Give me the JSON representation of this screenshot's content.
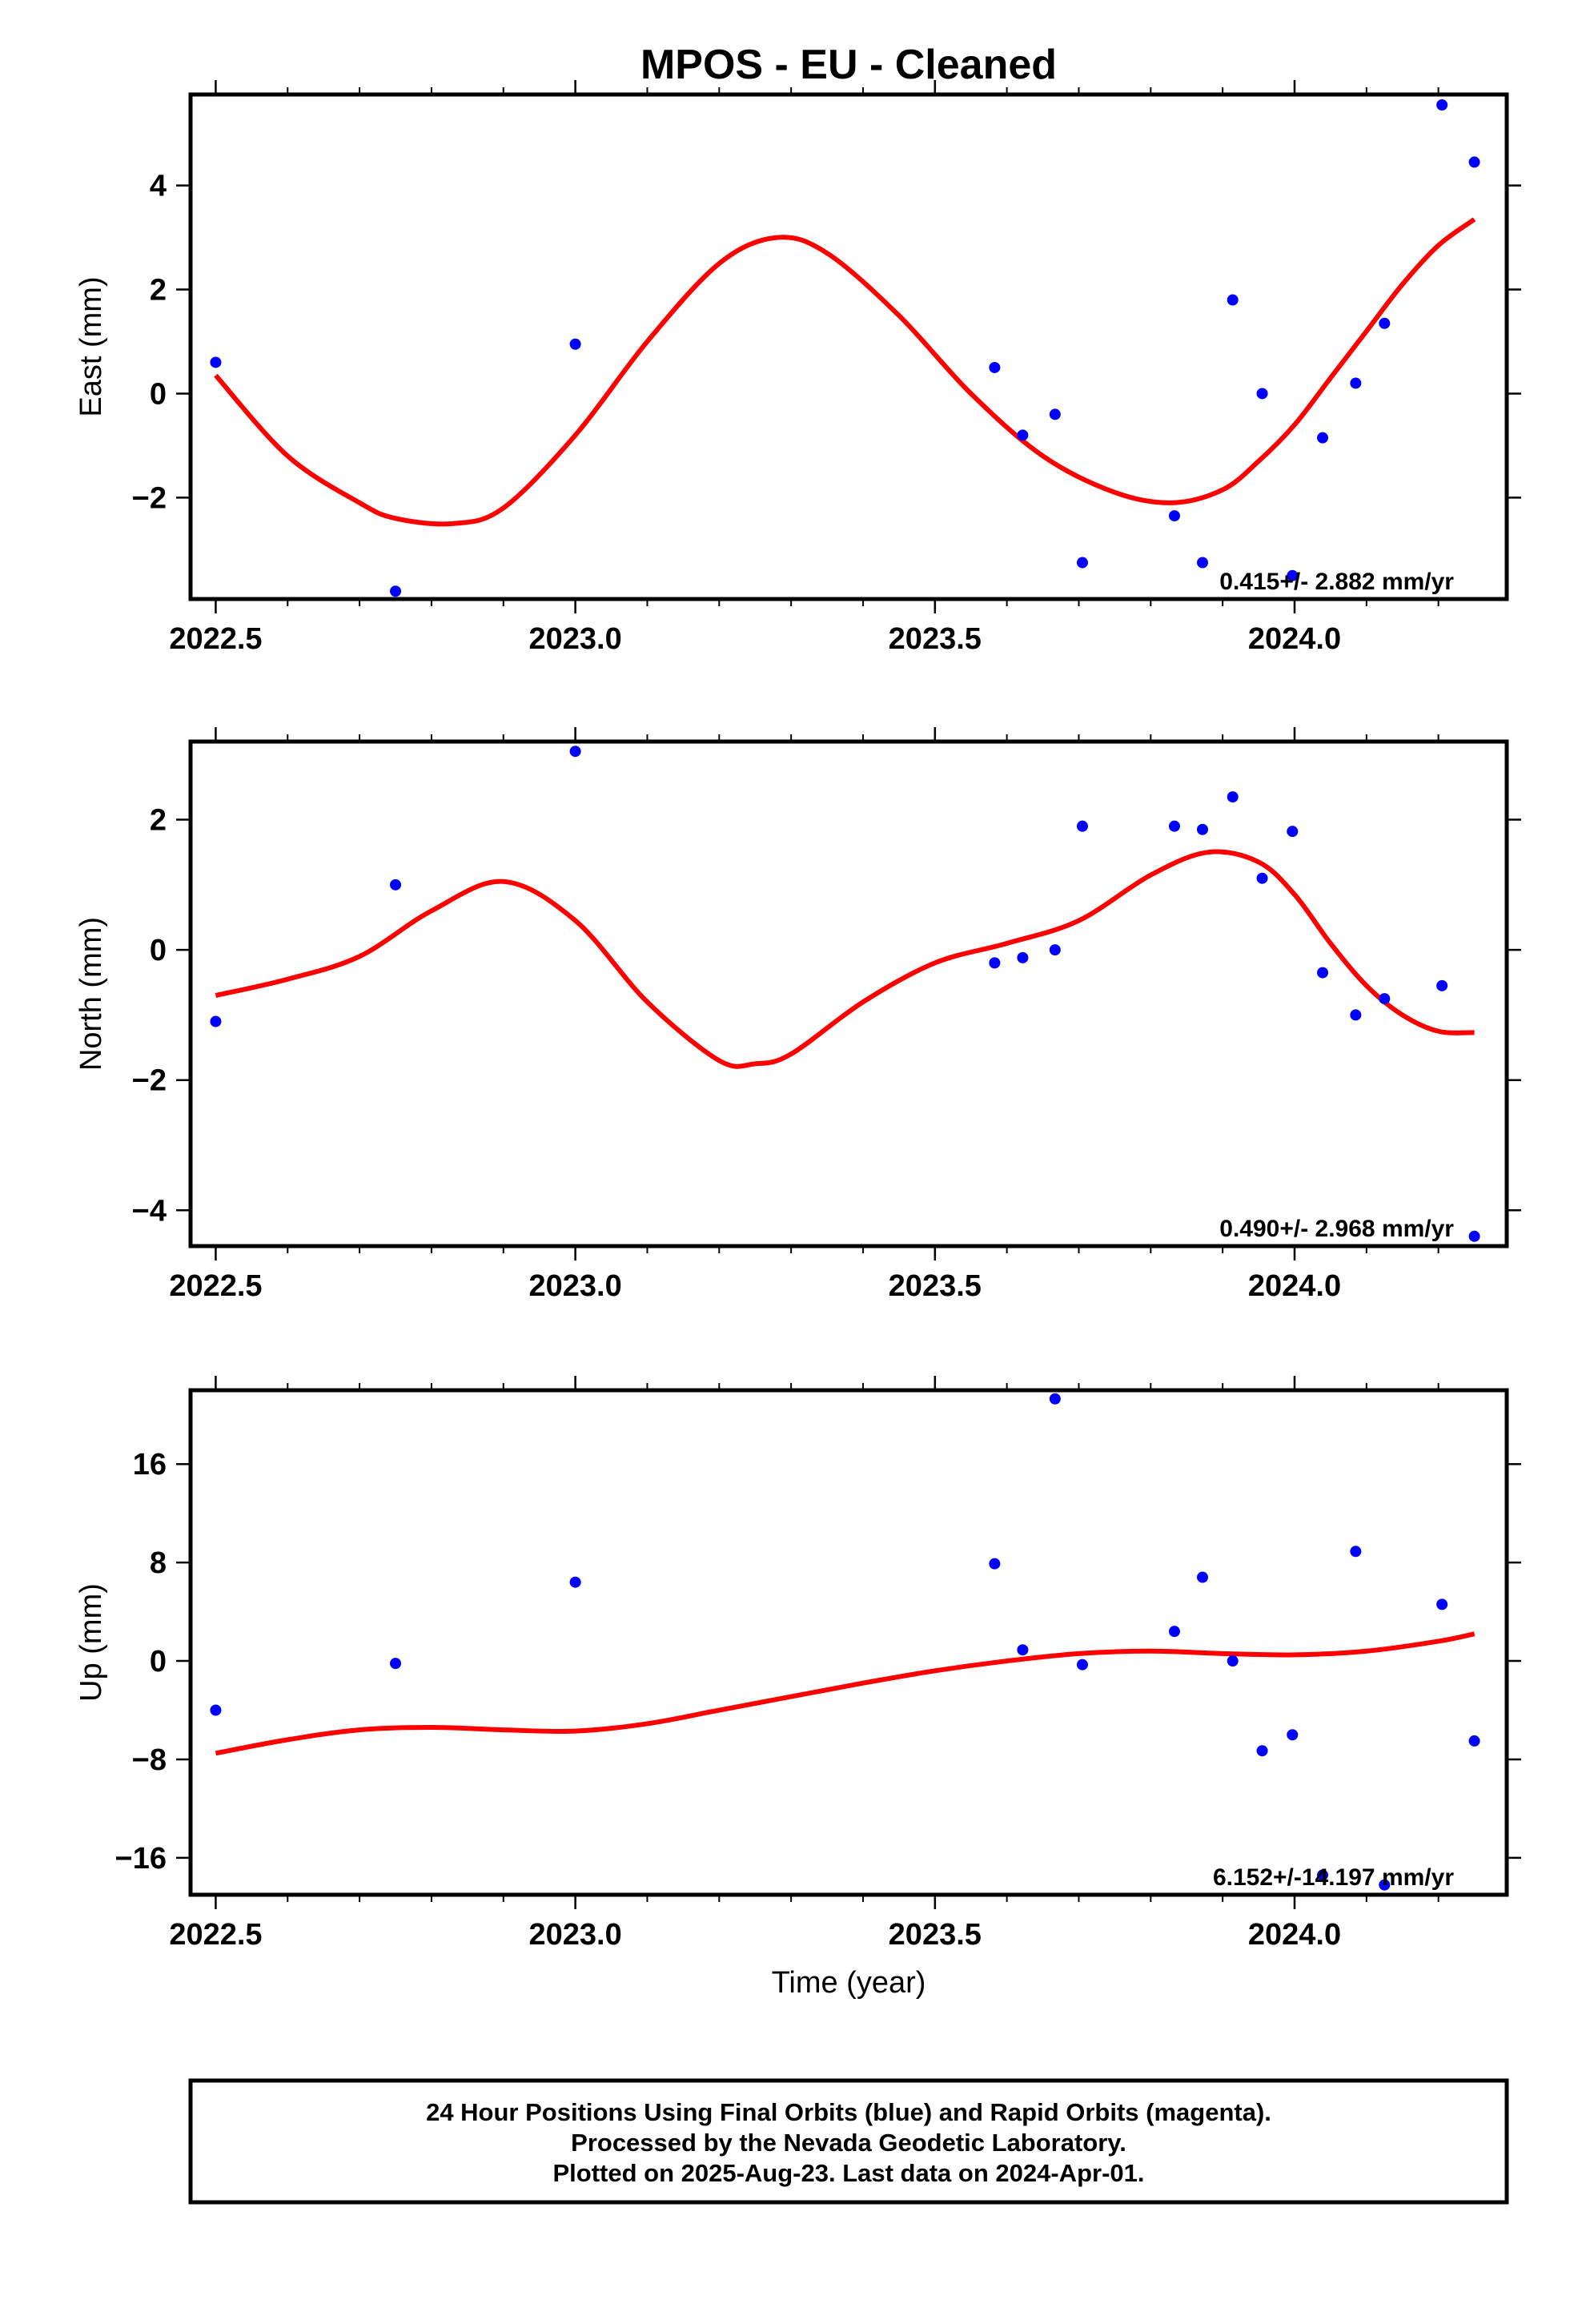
{
  "title": "MPOS  - EU - Cleaned",
  "colors": {
    "points": "#0000ff",
    "fit": "#ff0000",
    "frame": "#000000"
  },
  "footer": {
    "line1": "24 Hour Positions Using Final Orbits (blue) and Rapid Orbits (magenta).",
    "line2": "Processed by the Nevada Geodetic Laboratory.",
    "line3": "Plotted on 2025-Aug-23. Last data on 2024-Apr-01."
  },
  "chart_data": [
    {
      "type": "scatter",
      "ylabel": "East (mm)",
      "xlabel": "",
      "xlim": [
        2022.465,
        2024.295
      ],
      "ylim": [
        -3.95,
        5.75
      ],
      "xticks": [
        2022.5,
        2023.0,
        2023.5,
        2024.0
      ],
      "xtick_labels": [
        "2022.5",
        "2023.0",
        "2023.5",
        "2024.0"
      ],
      "yticks": [
        -2,
        0,
        2,
        4
      ],
      "ytick_labels": [
        "−2",
        "0",
        "2",
        "4"
      ],
      "rate_text": "0.415+/- 2.882 mm/yr",
      "points": {
        "x": [
          2022.5,
          2022.75,
          2023.0,
          2023.583,
          2023.622,
          2023.667,
          2023.705,
          2023.833,
          2023.872,
          2023.914,
          2023.955,
          2023.997,
          2024.039,
          2024.085,
          2024.125,
          2024.205,
          2024.25
        ],
        "y": [
          0.6,
          -3.8,
          0.95,
          0.5,
          -0.8,
          -0.4,
          -3.25,
          -2.35,
          -3.25,
          1.8,
          0.0,
          -3.5,
          -0.85,
          0.2,
          1.35,
          5.55,
          4.45
        ]
      },
      "fit": {
        "x": [
          2022.5,
          2022.6,
          2022.7,
          2022.75,
          2022.83,
          2022.9,
          2023.0,
          2023.1,
          2023.2,
          2023.28,
          2023.35,
          2023.45,
          2023.55,
          2023.65,
          2023.75,
          2023.83,
          2023.9,
          2023.95,
          2024.0,
          2024.05,
          2024.1,
          2024.15,
          2024.2,
          2024.25
        ],
        "y": [
          0.35,
          -1.2,
          -2.1,
          -2.4,
          -2.5,
          -2.2,
          -0.8,
          1.0,
          2.5,
          3.0,
          2.7,
          1.5,
          0.0,
          -1.2,
          -1.9,
          -2.1,
          -1.85,
          -1.3,
          -0.6,
          0.3,
          1.2,
          2.1,
          2.85,
          3.35
        ]
      }
    },
    {
      "type": "scatter",
      "ylabel": "North (mm)",
      "xlabel": "",
      "xlim": [
        2022.465,
        2024.295
      ],
      "ylim": [
        -4.55,
        3.2
      ],
      "xticks": [
        2022.5,
        2023.0,
        2023.5,
        2024.0
      ],
      "xtick_labels": [
        "2022.5",
        "2023.0",
        "2023.5",
        "2024.0"
      ],
      "yticks": [
        -4,
        -2,
        0,
        2
      ],
      "ytick_labels": [
        "−4",
        "−2",
        "0",
        "2"
      ],
      "rate_text": "0.490+/- 2.968 mm/yr",
      "points": {
        "x": [
          2022.5,
          2022.75,
          2023.0,
          2023.583,
          2023.622,
          2023.667,
          2023.705,
          2023.833,
          2023.872,
          2023.914,
          2023.955,
          2023.997,
          2024.039,
          2024.085,
          2024.125,
          2024.205,
          2024.25
        ],
        "y": [
          -1.1,
          1.0,
          3.05,
          -0.2,
          -0.12,
          0.0,
          1.9,
          1.9,
          1.85,
          2.35,
          1.1,
          1.82,
          -0.35,
          -1.0,
          -0.75,
          -0.55,
          -4.4
        ]
      },
      "fit": {
        "x": [
          2022.5,
          2022.6,
          2022.7,
          2022.8,
          2022.9,
          2023.0,
          2023.1,
          2023.2,
          2023.25,
          2023.3,
          2023.4,
          2023.5,
          2023.6,
          2023.7,
          2023.8,
          2023.88,
          2023.95,
          2024.0,
          2024.05,
          2024.1,
          2024.15,
          2024.2,
          2024.25
        ],
        "y": [
          -0.7,
          -0.45,
          -0.1,
          0.6,
          1.05,
          0.45,
          -0.8,
          -1.7,
          -1.75,
          -1.6,
          -0.8,
          -0.2,
          0.1,
          0.45,
          1.15,
          1.5,
          1.35,
          0.85,
          0.1,
          -0.55,
          -1.0,
          -1.25,
          -1.27
        ]
      }
    },
    {
      "type": "scatter",
      "ylabel": "Up (mm)",
      "xlabel": "Time (year)",
      "xlim": [
        2022.465,
        2024.295
      ],
      "ylim": [
        -19,
        22
      ],
      "xticks": [
        2022.5,
        2023.0,
        2023.5,
        2024.0
      ],
      "xtick_labels": [
        "2022.5",
        "2023.0",
        "2023.5",
        "2024.0"
      ],
      "yticks": [
        -16,
        -8,
        0,
        8,
        16
      ],
      "ytick_labels": [
        "−16",
        "−8",
        "0",
        "8",
        "16"
      ],
      "rate_text": "6.152+/-14.197 mm/yr",
      "points": {
        "x": [
          2022.5,
          2022.75,
          2023.0,
          2023.583,
          2023.622,
          2023.667,
          2023.705,
          2023.833,
          2023.872,
          2023.914,
          2023.955,
          2023.997,
          2024.039,
          2024.085,
          2024.125,
          2024.205,
          2024.25
        ],
        "y": [
          -4.0,
          -0.2,
          6.4,
          7.9,
          0.9,
          21.3,
          -0.3,
          2.4,
          6.8,
          0.0,
          -7.3,
          -6.0,
          -17.4,
          8.9,
          -18.2,
          4.6,
          -6.5
        ]
      },
      "fit": {
        "x": [
          2022.5,
          2022.6,
          2022.7,
          2022.8,
          2022.9,
          2023.0,
          2023.1,
          2023.2,
          2023.3,
          2023.4,
          2023.5,
          2023.6,
          2023.7,
          2023.8,
          2023.9,
          2024.0,
          2024.1,
          2024.2,
          2024.25
        ],
        "y": [
          -7.5,
          -6.4,
          -5.6,
          -5.4,
          -5.6,
          -5.7,
          -5.1,
          -4.0,
          -2.9,
          -1.8,
          -0.8,
          0.0,
          0.6,
          0.8,
          0.6,
          0.5,
          0.8,
          1.6,
          2.2
        ]
      }
    }
  ]
}
